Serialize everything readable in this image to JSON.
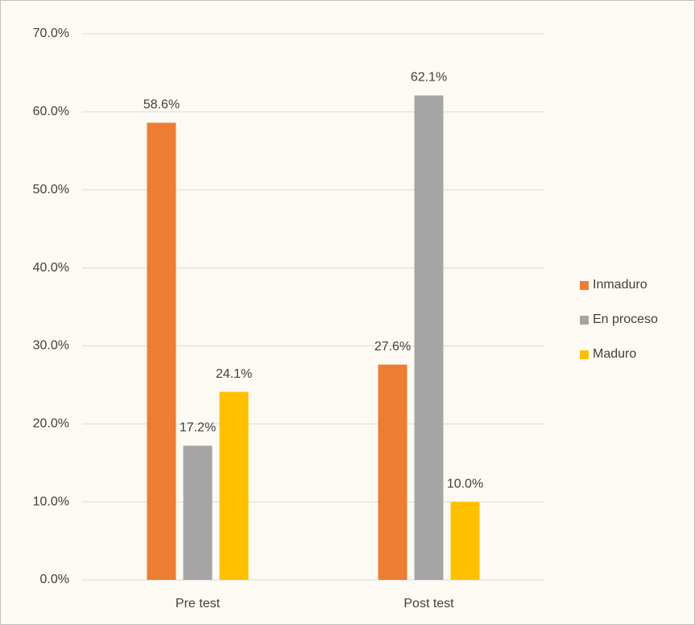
{
  "chart_data": {
    "type": "bar",
    "categories": [
      "Pre test",
      "Post test"
    ],
    "series": [
      {
        "name": "Inmaduro",
        "color": "#ed7d31",
        "values": [
          58.6,
          27.6
        ],
        "value_labels": [
          "58.6%",
          "27.6%"
        ]
      },
      {
        "name": "En proceso",
        "color": "#a5a5a5",
        "values": [
          17.2,
          62.1
        ],
        "value_labels": [
          "17.2%",
          "62.1%"
        ]
      },
      {
        "name": "Maduro",
        "color": "#ffc000",
        "values": [
          24.1,
          10.0
        ],
        "value_labels": [
          "24.1%",
          "10.0%"
        ]
      }
    ],
    "ylim": [
      0,
      70
    ],
    "yticks": [
      {
        "value": 0,
        "label": "0.0%"
      },
      {
        "value": 10,
        "label": "10.0%"
      },
      {
        "value": 20,
        "label": "20.0%"
      },
      {
        "value": 30,
        "label": "30.0%"
      },
      {
        "value": 40,
        "label": "40.0%"
      },
      {
        "value": 50,
        "label": "50.0%"
      },
      {
        "value": 60,
        "label": "60.0%"
      },
      {
        "value": 70,
        "label": "70.0%"
      }
    ],
    "grid": true,
    "legend": "right"
  }
}
